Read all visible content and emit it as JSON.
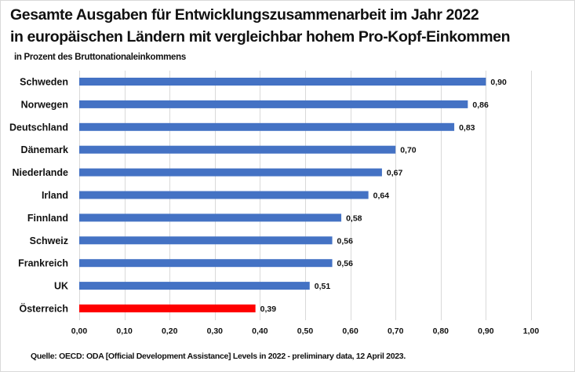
{
  "chart_data": {
    "type": "bar",
    "orientation": "horizontal",
    "title": "Gesamte Ausgaben für Entwicklungszusammenarbeit im Jahr 2022",
    "title_line2": "in europäischen Ländern mit vergleichbar hohem Pro-Kopf-Einkommen",
    "subtitle": "in Prozent des Bruttonationaleinkommens",
    "source": "Quelle: OECD: ODA [Official Development Assistance] Levels in 2022 - preliminary data, 12 April 2023.",
    "xlabel": "",
    "ylabel": "",
    "categories": [
      "Schweden",
      "Norwegen",
      "Deutschland",
      "Dänemark",
      "Niederlande",
      "Irland",
      "Finnland",
      "Schweiz",
      "Frankreich",
      "UK",
      "Österreich"
    ],
    "values": [
      0.9,
      0.86,
      0.83,
      0.7,
      0.67,
      0.64,
      0.58,
      0.56,
      0.56,
      0.51,
      0.39
    ],
    "data_labels": [
      "0,90",
      "0,86",
      "0,83",
      "0,70",
      "0,67",
      "0,64",
      "0,58",
      "0,56",
      "0,56",
      "0,51",
      "0,39"
    ],
    "bar_colors": [
      "#4472c4",
      "#4472c4",
      "#4472c4",
      "#4472c4",
      "#4472c4",
      "#4472c4",
      "#4472c4",
      "#4472c4",
      "#4472c4",
      "#4472c4",
      "#ff0000"
    ],
    "highlight": "Österreich",
    "xlim": [
      0,
      1.0
    ],
    "xticks": [
      0,
      0.1,
      0.2,
      0.3,
      0.4,
      0.5,
      0.6,
      0.7,
      0.8,
      0.9,
      1.0
    ],
    "xtick_labels": [
      "0,00",
      "0,10",
      "0,20",
      "0,30",
      "0,40",
      "0,50",
      "0,60",
      "0,70",
      "0,80",
      "0,90",
      "1,00"
    ],
    "grid": true,
    "grid_color": "#d9d9d9",
    "legend": "none"
  }
}
